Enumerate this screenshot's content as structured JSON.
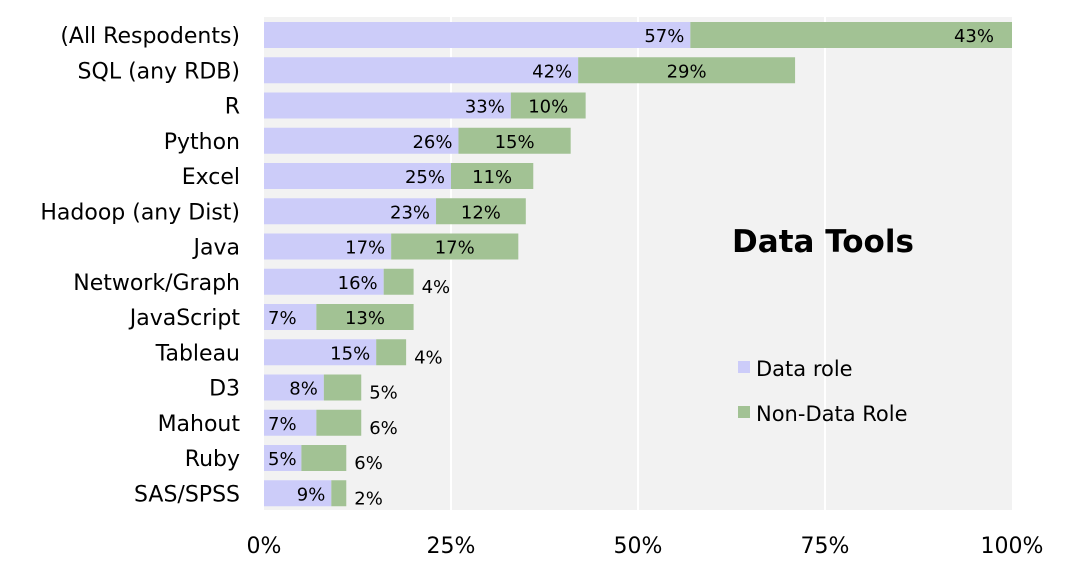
{
  "chart_data": {
    "type": "bar",
    "orientation": "horizontal",
    "stacked": true,
    "title": "Data Tools",
    "categories": [
      "(All Respodents)",
      "SQL (any RDB)",
      "R",
      "Python",
      "Excel",
      "Hadoop (any Dist)",
      "Java",
      "Network/Graph",
      "JavaScript",
      "Tableau",
      "D3",
      "Mahout",
      "Ruby",
      "SAS/SPSS"
    ],
    "series": [
      {
        "name": "Data role",
        "color": "#ccccf9",
        "values": [
          57,
          42,
          33,
          26,
          25,
          23,
          17,
          16,
          7,
          15,
          8,
          7,
          5,
          9
        ],
        "labels": [
          "57%",
          "42%",
          "33%",
          "26%",
          "25%",
          "23%",
          "17%",
          "16%",
          "7%",
          "15%",
          "8%",
          "7%",
          "5%",
          "9%"
        ]
      },
      {
        "name": "Non-Data Role",
        "color": "#a2c294",
        "values": [
          43,
          29,
          10,
          15,
          11,
          12,
          17,
          4,
          13,
          4,
          5,
          6,
          6,
          2
        ],
        "labels": [
          "43%",
          "29%",
          "10%",
          "15%",
          "11%",
          "12%",
          "17%",
          "4%",
          "13%",
          "4%",
          "5%",
          "6%",
          "6%",
          "2%"
        ]
      }
    ],
    "xlim": [
      0,
      100
    ],
    "xticks": [
      0,
      25,
      50,
      75,
      100
    ],
    "xtick_labels": [
      "0%",
      "25%",
      "50%",
      "75%",
      "100%"
    ],
    "grid": "vertical",
    "plot_background": "#f2f2f2",
    "grid_color": "#ffffff",
    "legend_position": "right",
    "title_position": "right"
  }
}
